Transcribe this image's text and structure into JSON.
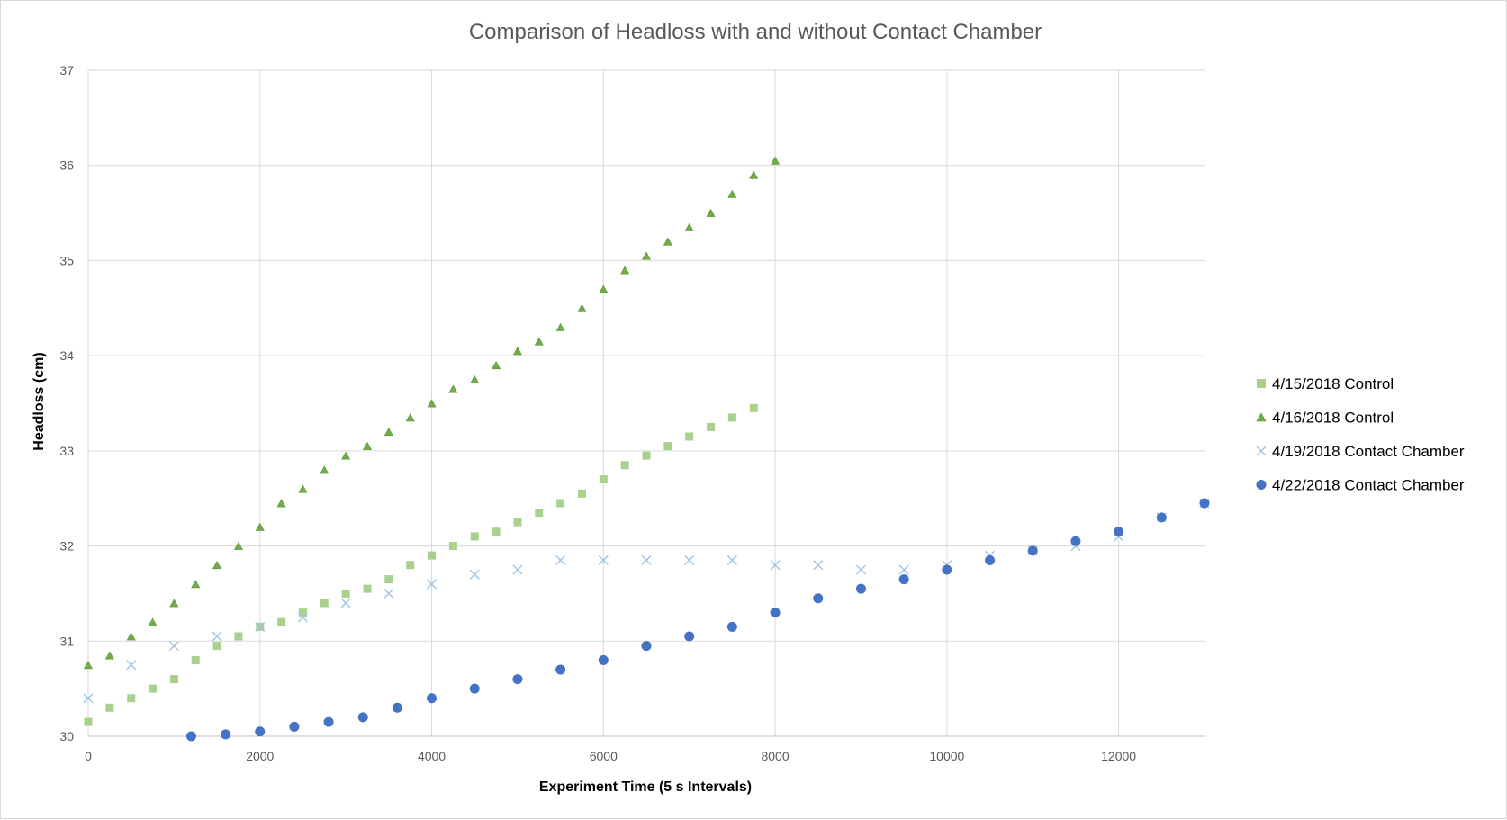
{
  "chart_data": {
    "type": "scatter",
    "title": "Comparison of Headloss with and without Contact Chamber",
    "xlabel": "Experiment Time (5 s Intervals)",
    "ylabel": "Headloss (cm)",
    "xlim": [
      0,
      13000
    ],
    "ylim": [
      30,
      37
    ],
    "xticks": [
      "0",
      "2000",
      "4000",
      "6000",
      "8000",
      "10000",
      "12000"
    ],
    "yticks": [
      "30",
      "31",
      "32",
      "33",
      "34",
      "35",
      "36",
      "37"
    ],
    "grid": true,
    "legend_position": "right",
    "series": [
      {
        "name": "4/15/2018 Control",
        "marker": "square",
        "color": "#a9d18e",
        "x": [
          0,
          250,
          500,
          750,
          1000,
          1250,
          1500,
          1750,
          2000,
          2250,
          2500,
          2750,
          3000,
          3250,
          3500,
          3750,
          4000,
          4250,
          4500,
          4750,
          5000,
          5250,
          5500,
          5750,
          6000,
          6250,
          6500,
          6750,
          7000,
          7250,
          7500,
          7750
        ],
        "y": [
          30.15,
          30.3,
          30.4,
          30.5,
          30.6,
          30.8,
          30.95,
          31.05,
          31.15,
          31.2,
          31.3,
          31.4,
          31.5,
          31.55,
          31.65,
          31.8,
          31.9,
          32.0,
          32.1,
          32.15,
          32.25,
          32.35,
          32.45,
          32.55,
          32.7,
          32.85,
          32.95,
          33.05,
          33.15,
          33.25,
          33.35,
          33.45
        ]
      },
      {
        "name": "4/16/2018 Control",
        "marker": "triangle",
        "color": "#70ad47",
        "x": [
          0,
          250,
          500,
          750,
          1000,
          1250,
          1500,
          1750,
          2000,
          2250,
          2500,
          2750,
          3000,
          3250,
          3500,
          3750,
          4000,
          4250,
          4500,
          4750,
          5000,
          5250,
          5500,
          5750,
          6000,
          6250,
          6500,
          6750,
          7000,
          7250,
          7500,
          7750,
          8000
        ],
        "y": [
          30.75,
          30.85,
          31.05,
          31.2,
          31.4,
          31.6,
          31.8,
          32.0,
          32.2,
          32.45,
          32.6,
          32.8,
          32.95,
          33.05,
          33.2,
          33.35,
          33.5,
          33.65,
          33.75,
          33.9,
          34.05,
          34.15,
          34.3,
          34.5,
          34.7,
          34.9,
          35.05,
          35.2,
          35.35,
          35.5,
          35.7,
          35.9,
          36.05
        ]
      },
      {
        "name": "4/19/2018 Contact Chamber",
        "marker": "x",
        "color": "#9dc3e6",
        "x": [
          0,
          500,
          1000,
          1500,
          2000,
          2500,
          3000,
          3500,
          4000,
          4500,
          5000,
          5500,
          6000,
          6500,
          7000,
          7500,
          8000,
          8500,
          9000,
          9500,
          10000,
          10500,
          11000,
          11500,
          12000,
          12500,
          13000
        ],
        "y": [
          30.4,
          30.75,
          30.95,
          31.05,
          31.15,
          31.25,
          31.4,
          31.5,
          31.6,
          31.7,
          31.75,
          31.85,
          31.85,
          31.85,
          31.85,
          31.85,
          31.8,
          31.8,
          31.75,
          31.75,
          31.8,
          31.9,
          31.95,
          32.0,
          32.1,
          32.3,
          32.45
        ]
      },
      {
        "name": "4/22/2018 Contact Chamber",
        "marker": "circle",
        "color": "#4472c4",
        "x": [
          1200,
          1600,
          2000,
          2400,
          2800,
          3200,
          3600,
          4000,
          4500,
          5000,
          5500,
          6000,
          6500,
          7000,
          7500,
          8000,
          8500,
          9000,
          9500,
          10000,
          10500,
          11000,
          11500,
          12000,
          12500,
          13000
        ],
        "y": [
          30.0,
          30.02,
          30.05,
          30.1,
          30.15,
          30.2,
          30.3,
          30.4,
          30.5,
          30.6,
          30.7,
          30.8,
          30.95,
          31.05,
          31.15,
          31.3,
          31.45,
          31.55,
          31.65,
          31.75,
          31.85,
          31.95,
          32.05,
          32.15,
          32.3,
          32.45
        ]
      }
    ]
  }
}
